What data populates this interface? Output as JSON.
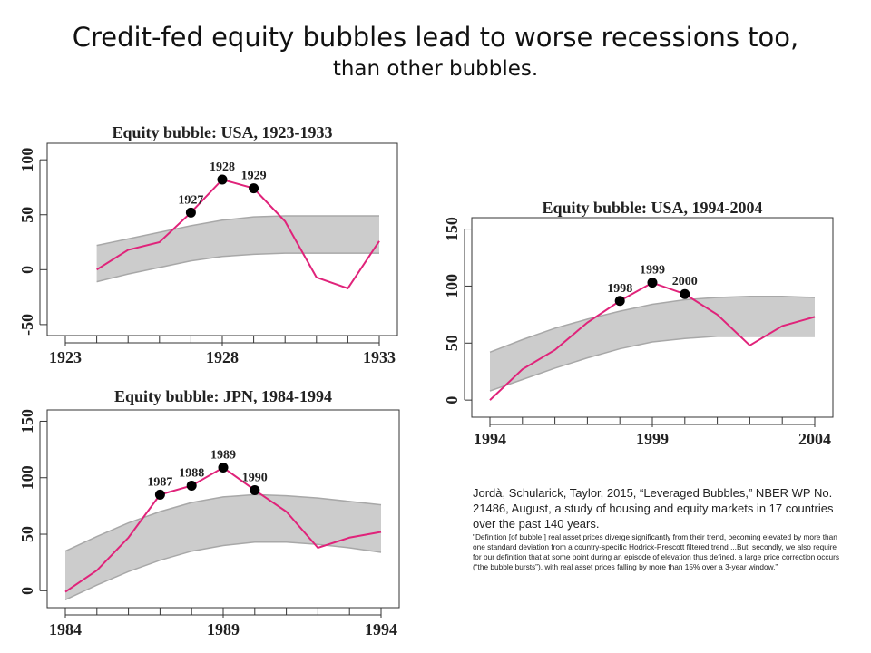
{
  "title": {
    "line1": "Credit-fed equity bubbles lead to worse recessions too,",
    "line2": "than other bubbles."
  },
  "citation": {
    "main": "Jordà, Schularick, Taylor, 2015, “Leveraged Bubbles,” NBER WP No. 21486, August, a study of housing and equity markets in 17 countries over the past 140 years.",
    "note": "\"Definition [of bubble:] real asset prices diverge significantly from their trend, becoming elevated by more than one standard deviation from a country-specific Hodrick-Prescott filtered trend ...But, secondly, we also require for our definition that at some point during an episode of elevation thus defined, a large price correction occurs (“the bubble bursts”), with real asset prices falling by more than 15% over a 3-year window.”"
  },
  "colors": {
    "line": "#e0237a",
    "band_fill": "#cccccc",
    "band_edge": "#a8a8a8",
    "marker": "#000000",
    "frame": "#333333"
  },
  "chart_data": [
    {
      "id": "usa1923",
      "type": "line",
      "title": "Equity bubble: USA, 1923-1933",
      "xlim": [
        1923,
        1933
      ],
      "ylim": [
        -60,
        115
      ],
      "x_ticks": [
        1923,
        1928,
        1933
      ],
      "y_ticks": [
        -50,
        0,
        50,
        100
      ],
      "x": [
        1924,
        1925,
        1926,
        1927,
        1928,
        1929,
        1930,
        1931,
        1932,
        1933
      ],
      "band_upper": [
        22,
        28,
        34,
        40,
        45,
        48,
        49,
        49,
        49,
        49
      ],
      "band_lower": [
        -11,
        -4,
        2,
        8,
        12,
        14,
        15,
        15,
        15,
        15
      ],
      "series": [
        {
          "values": [
            0,
            18,
            25,
            52,
            82,
            74,
            44,
            -7,
            -17,
            26
          ]
        }
      ],
      "highlights": [
        {
          "x": 1927,
          "y": 52,
          "label": "1927"
        },
        {
          "x": 1928,
          "y": 82,
          "label": "1928"
        },
        {
          "x": 1929,
          "y": 74,
          "label": "1929"
        }
      ]
    },
    {
      "id": "usa1994",
      "type": "line",
      "title": "Equity bubble: USA, 1994-2004",
      "xlim": [
        1994,
        2004
      ],
      "ylim": [
        -15,
        160
      ],
      "x_ticks": [
        1994,
        1999,
        2004
      ],
      "y_ticks": [
        0,
        50,
        100,
        150
      ],
      "x": [
        1994,
        1995,
        1996,
        1997,
        1998,
        1999,
        2000,
        2001,
        2002,
        2003,
        2004
      ],
      "band_upper": [
        42,
        53,
        63,
        71,
        78,
        84,
        88,
        90,
        91,
        91,
        90
      ],
      "band_lower": [
        8,
        18,
        28,
        37,
        45,
        51,
        54,
        56,
        56,
        56,
        56
      ],
      "series": [
        {
          "values": [
            0,
            27,
            44,
            68,
            87,
            103,
            93,
            75,
            48,
            65,
            73
          ]
        }
      ],
      "highlights": [
        {
          "x": 1998,
          "y": 87,
          "label": "1998"
        },
        {
          "x": 1999,
          "y": 103,
          "label": "1999"
        },
        {
          "x": 2000,
          "y": 93,
          "label": "2000"
        }
      ]
    },
    {
      "id": "jpn1984",
      "type": "line",
      "title": "Equity bubble: JPN, 1984-1994",
      "xlim": [
        1984,
        1994
      ],
      "ylim": [
        -15,
        160
      ],
      "x_ticks": [
        1984,
        1989,
        1994
      ],
      "y_ticks": [
        0,
        50,
        100,
        150
      ],
      "x": [
        1984,
        1985,
        1986,
        1987,
        1988,
        1989,
        1990,
        1991,
        1992,
        1993,
        1994
      ],
      "band_upper": [
        35,
        48,
        60,
        70,
        78,
        83,
        85,
        84,
        82,
        79,
        76
      ],
      "band_lower": [
        -8,
        5,
        17,
        27,
        35,
        40,
        43,
        43,
        41,
        38,
        34
      ],
      "series": [
        {
          "values": [
            -1,
            18,
            47,
            85,
            93,
            109,
            89,
            70,
            38,
            47,
            52
          ]
        }
      ],
      "highlights": [
        {
          "x": 1987,
          "y": 85,
          "label": "1987"
        },
        {
          "x": 1988,
          "y": 93,
          "label": "1988"
        },
        {
          "x": 1989,
          "y": 109,
          "label": "1989"
        },
        {
          "x": 1990,
          "y": 89,
          "label": "1990"
        }
      ]
    }
  ]
}
